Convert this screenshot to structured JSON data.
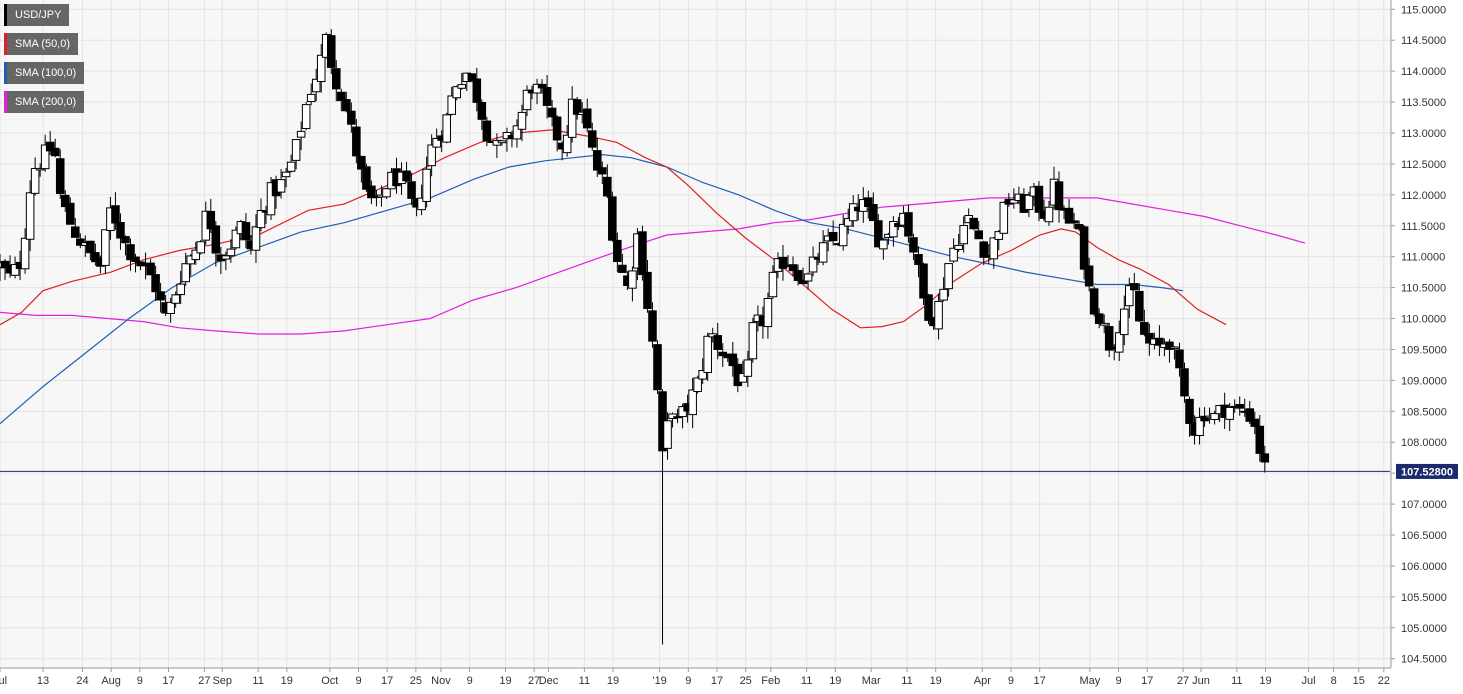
{
  "chart_data": {
    "type": "candlestick",
    "symbol": "USD/JPY",
    "legend": [
      {
        "label": "USD/JPY",
        "color": "#000000"
      },
      {
        "label": "SMA (50,0)",
        "color": "#e02020"
      },
      {
        "label": "SMA (100,0)",
        "color": "#1f5fb4"
      },
      {
        "label": "SMA (200,0)",
        "color": "#e020e0"
      }
    ],
    "last_price": 107.528,
    "last_price_label": "107.52800",
    "ylim": [
      104.35,
      115.15
    ],
    "y_ticks": [
      {
        "value": 115.0,
        "label": "115.0000"
      },
      {
        "value": 114.5,
        "label": "114.5000"
      },
      {
        "value": 114.0,
        "label": "114.0000"
      },
      {
        "value": 113.5,
        "label": "113.5000"
      },
      {
        "value": 113.0,
        "label": "113.0000"
      },
      {
        "value": 112.5,
        "label": "112.5000"
      },
      {
        "value": 112.0,
        "label": "112.0000"
      },
      {
        "value": 111.5,
        "label": "111.5000"
      },
      {
        "value": 111.0,
        "label": "111.0000"
      },
      {
        "value": 110.5,
        "label": "110.5000"
      },
      {
        "value": 110.0,
        "label": "110.0000"
      },
      {
        "value": 109.5,
        "label": "109.5000"
      },
      {
        "value": 109.0,
        "label": "109.0000"
      },
      {
        "value": 108.5,
        "label": "108.5000"
      },
      {
        "value": 108.0,
        "label": "108.0000"
      },
      {
        "value": 107.5,
        "label": "107.5000"
      },
      {
        "value": 107.0,
        "label": "107.0000"
      },
      {
        "value": 106.5,
        "label": "106.5000"
      },
      {
        "value": 106.0,
        "label": "106.0000"
      },
      {
        "value": 105.5,
        "label": "105.5000"
      },
      {
        "value": 105.0,
        "label": "105.0000"
      },
      {
        "value": 104.5,
        "label": "104.5000"
      }
    ],
    "x_ticks": [
      {
        "label": "Jul",
        "day": 0
      },
      {
        "label": "13",
        "day": 12
      },
      {
        "label": "24",
        "day": 23
      },
      {
        "label": "Aug",
        "day": 31
      },
      {
        "label": "9",
        "day": 39
      },
      {
        "label": "17",
        "day": 47
      },
      {
        "label": "27",
        "day": 57
      },
      {
        "label": "Sep",
        "day": 62
      },
      {
        "label": "11",
        "day": 72
      },
      {
        "label": "19",
        "day": 80
      },
      {
        "label": "Oct",
        "day": 92
      },
      {
        "label": "9",
        "day": 100
      },
      {
        "label": "17",
        "day": 108
      },
      {
        "label": "25",
        "day": 116
      },
      {
        "label": "Nov",
        "day": 123
      },
      {
        "label": "9",
        "day": 131
      },
      {
        "label": "19",
        "day": 141
      },
      {
        "label": "27",
        "day": 149
      },
      {
        "label": "Dec",
        "day": 153
      },
      {
        "label": "11",
        "day": 163
      },
      {
        "label": "19",
        "day": 171
      },
      {
        "label": "'19",
        "day": 184
      },
      {
        "label": "9",
        "day": 192
      },
      {
        "label": "17",
        "day": 200
      },
      {
        "label": "25",
        "day": 208
      },
      {
        "label": "Feb",
        "day": 215
      },
      {
        "label": "11",
        "day": 225
      },
      {
        "label": "19",
        "day": 233
      },
      {
        "label": "Mar",
        "day": 243
      },
      {
        "label": "11",
        "day": 253
      },
      {
        "label": "19",
        "day": 261
      },
      {
        "label": "Apr",
        "day": 274
      },
      {
        "label": "9",
        "day": 282
      },
      {
        "label": "17",
        "day": 290
      },
      {
        "label": "May",
        "day": 304
      },
      {
        "label": "9",
        "day": 312
      },
      {
        "label": "17",
        "day": 320
      },
      {
        "label": "27",
        "day": 330
      },
      {
        "label": "Jun",
        "day": 335
      },
      {
        "label": "11",
        "day": 345
      },
      {
        "label": "19",
        "day": 353
      },
      {
        "label": "Jul",
        "day": 365
      },
      {
        "label": "8",
        "day": 372
      },
      {
        "label": "15",
        "day": 379
      },
      {
        "label": "22",
        "day": 386
      }
    ],
    "day_span": [
      0,
      388
    ],
    "anchors": [
      [
        0,
        110.85
      ],
      [
        3,
        110.65
      ],
      [
        6,
        110.95
      ],
      [
        9,
        112.4
      ],
      [
        12,
        112.6
      ],
      [
        15,
        112.8
      ],
      [
        17,
        111.9
      ],
      [
        20,
        111.5
      ],
      [
        24,
        111.1
      ],
      [
        28,
        110.85
      ],
      [
        31,
        111.8
      ],
      [
        35,
        111.2
      ],
      [
        39,
        110.9
      ],
      [
        43,
        110.6
      ],
      [
        46,
        110.0
      ],
      [
        48,
        110.25
      ],
      [
        51,
        110.8
      ],
      [
        55,
        111.2
      ],
      [
        58,
        111.75
      ],
      [
        61,
        111.0
      ],
      [
        64,
        111.15
      ],
      [
        67,
        111.5
      ],
      [
        70,
        111.1
      ],
      [
        72,
        111.6
      ],
      [
        75,
        112.0
      ],
      [
        79,
        112.2
      ],
      [
        82,
        112.6
      ],
      [
        86,
        113.6
      ],
      [
        89,
        114.05
      ],
      [
        91,
        114.5
      ],
      [
        93,
        114.0
      ],
      [
        96,
        113.5
      ],
      [
        99,
        112.8
      ],
      [
        102,
        112.0
      ],
      [
        105,
        111.8
      ],
      [
        108,
        112.2
      ],
      [
        111,
        112.3
      ],
      [
        114,
        112.0
      ],
      [
        116,
        111.6
      ],
      [
        118,
        112.2
      ],
      [
        121,
        112.9
      ],
      [
        124,
        113.1
      ],
      [
        127,
        113.8
      ],
      [
        130,
        114.0
      ],
      [
        133,
        113.6
      ],
      [
        136,
        113.0
      ],
      [
        139,
        112.7
      ],
      [
        142,
        112.9
      ],
      [
        145,
        113.2
      ],
      [
        148,
        113.8
      ],
      [
        151,
        113.6
      ],
      [
        154,
        113.1
      ],
      [
        157,
        112.8
      ],
      [
        160,
        113.5
      ],
      [
        163,
        113.2
      ],
      [
        166,
        112.5
      ],
      [
        169,
        112.1
      ],
      [
        172,
        111.0
      ],
      [
        175,
        110.5
      ],
      [
        178,
        111.4
      ],
      [
        180,
        110.5
      ],
      [
        182,
        109.6
      ],
      [
        184,
        108.5
      ],
      [
        185,
        107.55
      ],
      [
        187,
        108.7
      ],
      [
        189,
        108.3
      ],
      [
        192,
        108.6
      ],
      [
        195,
        109.0
      ],
      [
        198,
        109.8
      ],
      [
        201,
        109.5
      ],
      [
        204,
        109.3
      ],
      [
        206,
        109.0
      ],
      [
        208,
        108.9
      ],
      [
        210,
        109.8
      ],
      [
        213,
        110.0
      ],
      [
        216,
        110.7
      ],
      [
        219,
        111.0
      ],
      [
        222,
        110.8
      ],
      [
        225,
        110.6
      ],
      [
        228,
        111.0
      ],
      [
        231,
        111.2
      ],
      [
        234,
        111.3
      ],
      [
        237,
        111.6
      ],
      [
        240,
        111.9
      ],
      [
        243,
        111.6
      ],
      [
        246,
        111.2
      ],
      [
        249,
        111.6
      ],
      [
        252,
        111.7
      ],
      [
        255,
        111.1
      ],
      [
        258,
        110.2
      ],
      [
        261,
        110.0
      ],
      [
        264,
        110.8
      ],
      [
        267,
        111.3
      ],
      [
        270,
        111.6
      ],
      [
        273,
        111.3
      ],
      [
        276,
        111.0
      ],
      [
        279,
        111.6
      ],
      [
        282,
        112.0
      ],
      [
        285,
        111.8
      ],
      [
        288,
        112.0
      ],
      [
        291,
        111.7
      ],
      [
        294,
        112.1
      ],
      [
        297,
        111.6
      ],
      [
        300,
        111.5
      ],
      [
        302,
        111.1
      ],
      [
        304,
        110.4
      ],
      [
        307,
        110.0
      ],
      [
        310,
        109.5
      ],
      [
        313,
        110.1
      ],
      [
        316,
        110.5
      ],
      [
        318,
        109.9
      ],
      [
        320,
        109.6
      ],
      [
        323,
        109.5
      ],
      [
        326,
        109.7
      ],
      [
        328,
        109.3
      ],
      [
        330,
        108.8
      ],
      [
        333,
        108.2
      ],
      [
        336,
        108.5
      ],
      [
        339,
        108.4
      ],
      [
        342,
        108.6
      ],
      [
        345,
        108.5
      ],
      [
        348,
        108.5
      ],
      [
        350,
        108.3
      ],
      [
        352,
        107.7
      ],
      [
        353,
        107.55
      ]
    ],
    "sma50": [
      [
        0,
        109.9
      ],
      [
        6,
        110.1
      ],
      [
        12,
        110.45
      ],
      [
        20,
        110.6
      ],
      [
        31,
        110.75
      ],
      [
        40,
        110.95
      ],
      [
        50,
        111.1
      ],
      [
        60,
        111.2
      ],
      [
        72,
        111.35
      ],
      [
        86,
        111.75
      ],
      [
        96,
        111.85
      ],
      [
        104,
        112.05
      ],
      [
        114,
        112.3
      ],
      [
        124,
        112.6
      ],
      [
        134,
        112.85
      ],
      [
        144,
        113.0
      ],
      [
        154,
        113.05
      ],
      [
        164,
        112.95
      ],
      [
        172,
        112.85
      ],
      [
        180,
        112.6
      ],
      [
        186,
        112.45
      ],
      [
        192,
        112.15
      ],
      [
        200,
        111.7
      ],
      [
        208,
        111.3
      ],
      [
        216,
        110.95
      ],
      [
        224,
        110.55
      ],
      [
        232,
        110.15
      ],
      [
        240,
        109.85
      ],
      [
        246,
        109.87
      ],
      [
        252,
        109.95
      ],
      [
        258,
        110.2
      ],
      [
        266,
        110.6
      ],
      [
        274,
        110.9
      ],
      [
        282,
        111.1
      ],
      [
        290,
        111.35
      ],
      [
        296,
        111.45
      ],
      [
        300,
        111.4
      ],
      [
        306,
        111.15
      ],
      [
        312,
        110.95
      ],
      [
        318,
        110.8
      ],
      [
        326,
        110.55
      ],
      [
        334,
        110.15
      ],
      [
        342,
        109.9
      ]
    ],
    "sma100": [
      [
        0,
        108.3
      ],
      [
        12,
        108.9
      ],
      [
        24,
        109.45
      ],
      [
        36,
        110.0
      ],
      [
        48,
        110.5
      ],
      [
        60,
        110.9
      ],
      [
        72,
        111.15
      ],
      [
        84,
        111.4
      ],
      [
        96,
        111.55
      ],
      [
        108,
        111.75
      ],
      [
        120,
        111.95
      ],
      [
        132,
        112.25
      ],
      [
        142,
        112.45
      ],
      [
        152,
        112.55
      ],
      [
        160,
        112.6
      ],
      [
        168,
        112.65
      ],
      [
        176,
        112.6
      ],
      [
        186,
        112.45
      ],
      [
        196,
        112.2
      ],
      [
        206,
        112.0
      ],
      [
        216,
        111.75
      ],
      [
        226,
        111.55
      ],
      [
        236,
        111.45
      ],
      [
        246,
        111.3
      ],
      [
        256,
        111.15
      ],
      [
        266,
        111.0
      ],
      [
        276,
        110.88
      ],
      [
        286,
        110.75
      ],
      [
        296,
        110.65
      ],
      [
        306,
        110.55
      ],
      [
        316,
        110.55
      ],
      [
        324,
        110.5
      ],
      [
        330,
        110.45
      ]
    ],
    "sma200": [
      [
        0,
        110.1
      ],
      [
        10,
        110.05
      ],
      [
        20,
        110.05
      ],
      [
        30,
        110.0
      ],
      [
        40,
        109.95
      ],
      [
        50,
        109.85
      ],
      [
        60,
        109.8
      ],
      [
        72,
        109.75
      ],
      [
        84,
        109.75
      ],
      [
        96,
        109.8
      ],
      [
        108,
        109.9
      ],
      [
        120,
        110.0
      ],
      [
        132,
        110.3
      ],
      [
        144,
        110.5
      ],
      [
        156,
        110.75
      ],
      [
        168,
        111.0
      ],
      [
        178,
        111.2
      ],
      [
        186,
        111.35
      ],
      [
        196,
        111.4
      ],
      [
        206,
        111.45
      ],
      [
        216,
        111.55
      ],
      [
        226,
        111.6
      ],
      [
        236,
        111.7
      ],
      [
        246,
        111.8
      ],
      [
        256,
        111.85
      ],
      [
        266,
        111.9
      ],
      [
        276,
        111.95
      ],
      [
        286,
        111.95
      ],
      [
        296,
        111.95
      ],
      [
        306,
        111.95
      ],
      [
        316,
        111.85
      ],
      [
        326,
        111.75
      ],
      [
        336,
        111.65
      ],
      [
        346,
        111.5
      ],
      [
        356,
        111.35
      ],
      [
        364,
        111.22
      ]
    ]
  }
}
